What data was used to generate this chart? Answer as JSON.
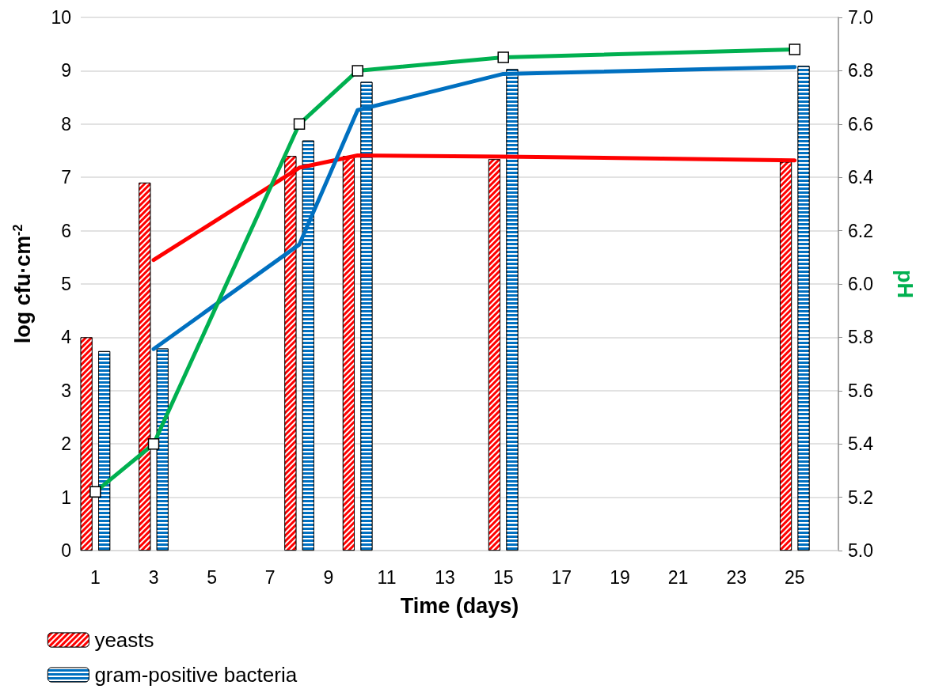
{
  "chart_data": {
    "type": "bar",
    "xlabel": "Time (days)",
    "ylabel": "log cfu·cm$^{-2}$",
    "y2label": "pH",
    "x": [
      1,
      3,
      8,
      10,
      15,
      25
    ],
    "series": [
      {
        "name": "yeasts",
        "color": "#ff0000",
        "values": [
          4.0,
          6.9,
          7.4,
          7.4,
          7.34,
          7.29
        ]
      },
      {
        "name": "gram-positive bacteria",
        "color": "#0070c0",
        "values": [
          3.74,
          3.79,
          7.69,
          8.79,
          9.03,
          9.09
        ]
      },
      {
        "type": "line",
        "color": "#ff0000",
        "x": [
          3,
          8,
          10,
          15,
          25
        ],
        "values": [
          5.45,
          7.18,
          7.41,
          7.39,
          7.32
        ]
      },
      {
        "type": "line",
        "color": "#0070c0",
        "x": [
          3,
          8,
          10,
          15,
          25
        ],
        "values": [
          3.78,
          5.74,
          8.26,
          8.94,
          9.07
        ]
      },
      {
        "type": "line",
        "color": "#00b050",
        "axis": "y2",
        "marker": "square",
        "x": [
          1,
          3,
          8,
          10,
          15,
          25
        ],
        "values": [
          5.22,
          5.4,
          6.6,
          6.8,
          6.85,
          6.88
        ]
      }
    ],
    "xlim": [
      0.5,
      26.5
    ],
    "xticks": [
      1,
      3,
      5,
      7,
      9,
      11,
      13,
      15,
      17,
      19,
      21,
      23,
      25
    ],
    "ylim": [
      0,
      10
    ],
    "yticks": [
      0,
      1,
      2,
      3,
      4,
      5,
      6,
      7,
      8,
      9,
      10
    ],
    "y2lim": [
      5.0,
      7.0
    ],
    "y2ticks": [
      {
        "value": 5.0,
        "label": "5.0"
      },
      {
        "value": 5.2,
        "label": "5.2"
      },
      {
        "value": 5.4,
        "label": "5.4"
      },
      {
        "value": 5.6,
        "label": "5.6"
      },
      {
        "value": 5.8,
        "label": "5.8"
      },
      {
        "value": 6.0,
        "label": "6.0"
      },
      {
        "value": 6.2,
        "label": "6.2"
      },
      {
        "value": 6.4,
        "label": "6.4"
      },
      {
        "value": 6.6,
        "label": "6.6"
      },
      {
        "value": 6.8,
        "label": "6.8"
      },
      {
        "value": 7.0,
        "label": "7.0"
      }
    ],
    "grid": "y",
    "legend": "bottom left"
  }
}
